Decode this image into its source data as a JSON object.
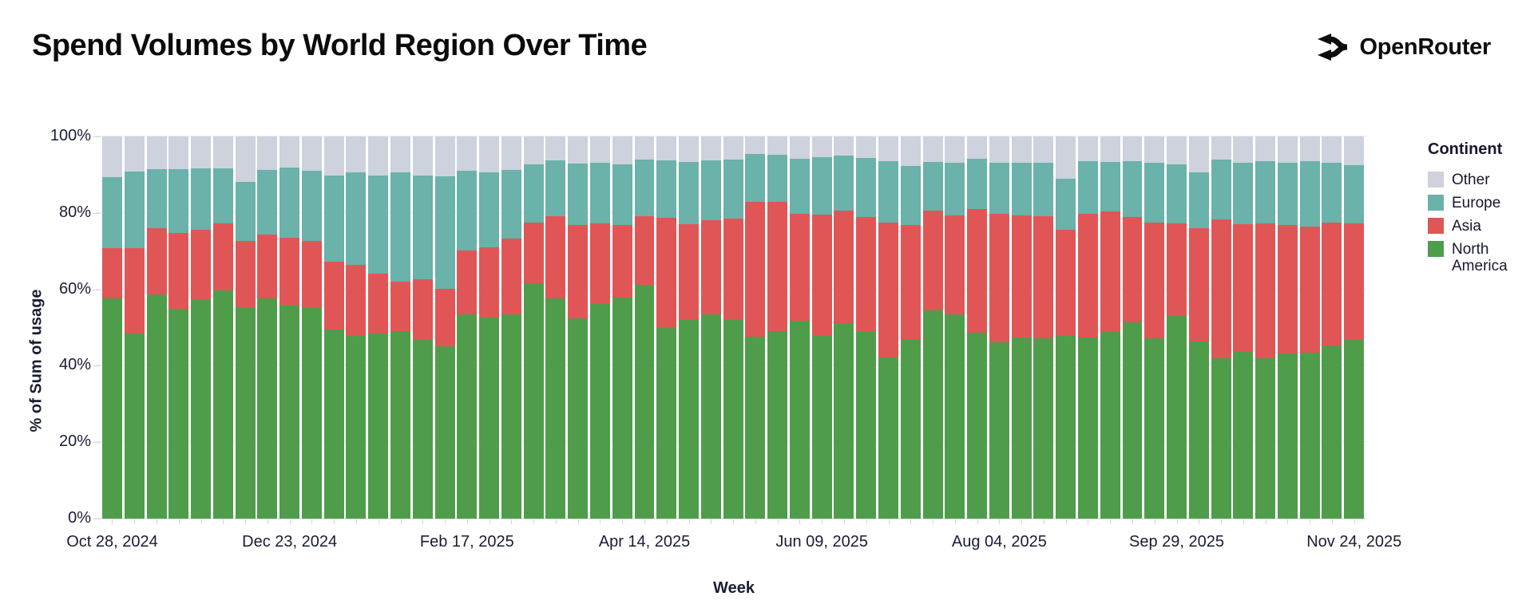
{
  "page": {
    "title": "Spend Volumes by World Region Over Time",
    "brand": "OpenRouter"
  },
  "chart_data": {
    "type": "bar",
    "variant": "stacked-100-percent",
    "title": "Spend Volumes by World Region Over Time",
    "xlabel": "Week",
    "ylabel": "% of Sum of usage",
    "ylim": [
      0,
      100
    ],
    "grid": "horizontal",
    "y_tick_labels": [
      "0%",
      "20%",
      "40%",
      "60%",
      "80%",
      "100%"
    ],
    "num_weeks": 57,
    "x_first_week": "Oct 28, 2024",
    "x_last_week": "Nov 24, 2025",
    "x_tick_labels": [
      "Oct 28, 2024",
      "Dec 23, 2024",
      "Feb 17, 2025",
      "Apr 14, 2025",
      "Jun 09, 2025",
      "Aug 04, 2025",
      "Sep 29, 2025",
      "Nov 24, 2025"
    ],
    "x_tick_week_indices": [
      0,
      8,
      16,
      24,
      32,
      40,
      48,
      56
    ],
    "legend_title": "Continent",
    "legend_position": "right",
    "series": [
      {
        "name": "Other",
        "color": "#cdd2dd",
        "values": [
          10.7,
          9.1,
          8.5,
          8.5,
          8.4,
          8.3,
          11.9,
          8.7,
          8.1,
          8.9,
          10.3,
          9.4,
          10.3,
          9.4,
          10.3,
          10.5,
          8.9,
          9.4,
          8.7,
          7.3,
          6.3,
          7.1,
          6.9,
          7.3,
          6.1,
          6.3,
          6.6,
          6.3,
          6.1,
          4.6,
          4.8,
          5.9,
          5.5,
          5.0,
          5.7,
          6.4,
          7.8,
          6.6,
          6.9,
          5.9,
          6.9,
          6.9,
          6.9,
          11.1,
          6.4,
          6.6,
          6.4,
          6.8,
          7.3,
          9.4,
          6.1,
          6.8,
          6.4,
          6.8,
          6.4,
          6.8,
          7.5
        ]
      },
      {
        "name": "Europe",
        "color": "#6ab2aa",
        "values": [
          18.5,
          20.1,
          15.6,
          16.7,
          16.1,
          14.5,
          15.4,
          17.0,
          18.5,
          18.4,
          22.4,
          24.2,
          25.7,
          28.6,
          27.1,
          29.4,
          20.9,
          19.6,
          18.1,
          15.3,
          14.5,
          16.1,
          15.8,
          15.9,
          14.8,
          14.9,
          16.4,
          15.7,
          15.4,
          12.5,
          12.4,
          14.4,
          14.9,
          14.4,
          15.3,
          16.2,
          15.4,
          12.8,
          13.7,
          13.2,
          13.4,
          13.7,
          13.9,
          13.4,
          13.9,
          13.1,
          14.6,
          15.8,
          15.4,
          14.7,
          15.6,
          16.1,
          16.3,
          16.3,
          17.2,
          15.8,
          15.2
        ]
      },
      {
        "name": "Asia",
        "color": "#e05656",
        "values": [
          13.1,
          22.4,
          17.2,
          19.8,
          18.0,
          17.4,
          17.3,
          16.6,
          17.5,
          17.3,
          17.9,
          18.6,
          15.5,
          12.9,
          15.9,
          15.0,
          16.7,
          18.4,
          19.8,
          15.9,
          21.5,
          24.5,
          21.2,
          18.9,
          17.9,
          29.0,
          24.9,
          24.5,
          26.6,
          35.4,
          33.7,
          28.0,
          31.6,
          29.4,
          30.1,
          35.3,
          29.8,
          26.2,
          25.9,
          32.2,
          33.6,
          32.1,
          32.0,
          27.6,
          32.4,
          31.4,
          27.6,
          30.2,
          24.2,
          29.6,
          36.4,
          33.4,
          35.3,
          33.6,
          32.9,
          32.0,
          30.5
        ]
      },
      {
        "name": "North America",
        "color": "#4f9d4b",
        "values": [
          57.7,
          48.4,
          58.7,
          55.0,
          57.5,
          59.8,
          55.4,
          57.7,
          55.9,
          55.4,
          49.4,
          47.8,
          48.5,
          49.1,
          46.7,
          45.1,
          53.5,
          52.6,
          53.4,
          61.5,
          57.7,
          52.3,
          56.1,
          57.9,
          61.2,
          49.8,
          52.1,
          53.5,
          51.9,
          47.5,
          49.1,
          51.7,
          48.0,
          51.2,
          48.9,
          42.1,
          47.0,
          54.4,
          53.5,
          48.7,
          46.1,
          47.3,
          47.2,
          47.9,
          47.3,
          48.9,
          51.4,
          47.2,
          53.1,
          46.3,
          41.9,
          43.7,
          42.0,
          43.3,
          43.5,
          45.4,
          46.8
        ]
      }
    ]
  }
}
